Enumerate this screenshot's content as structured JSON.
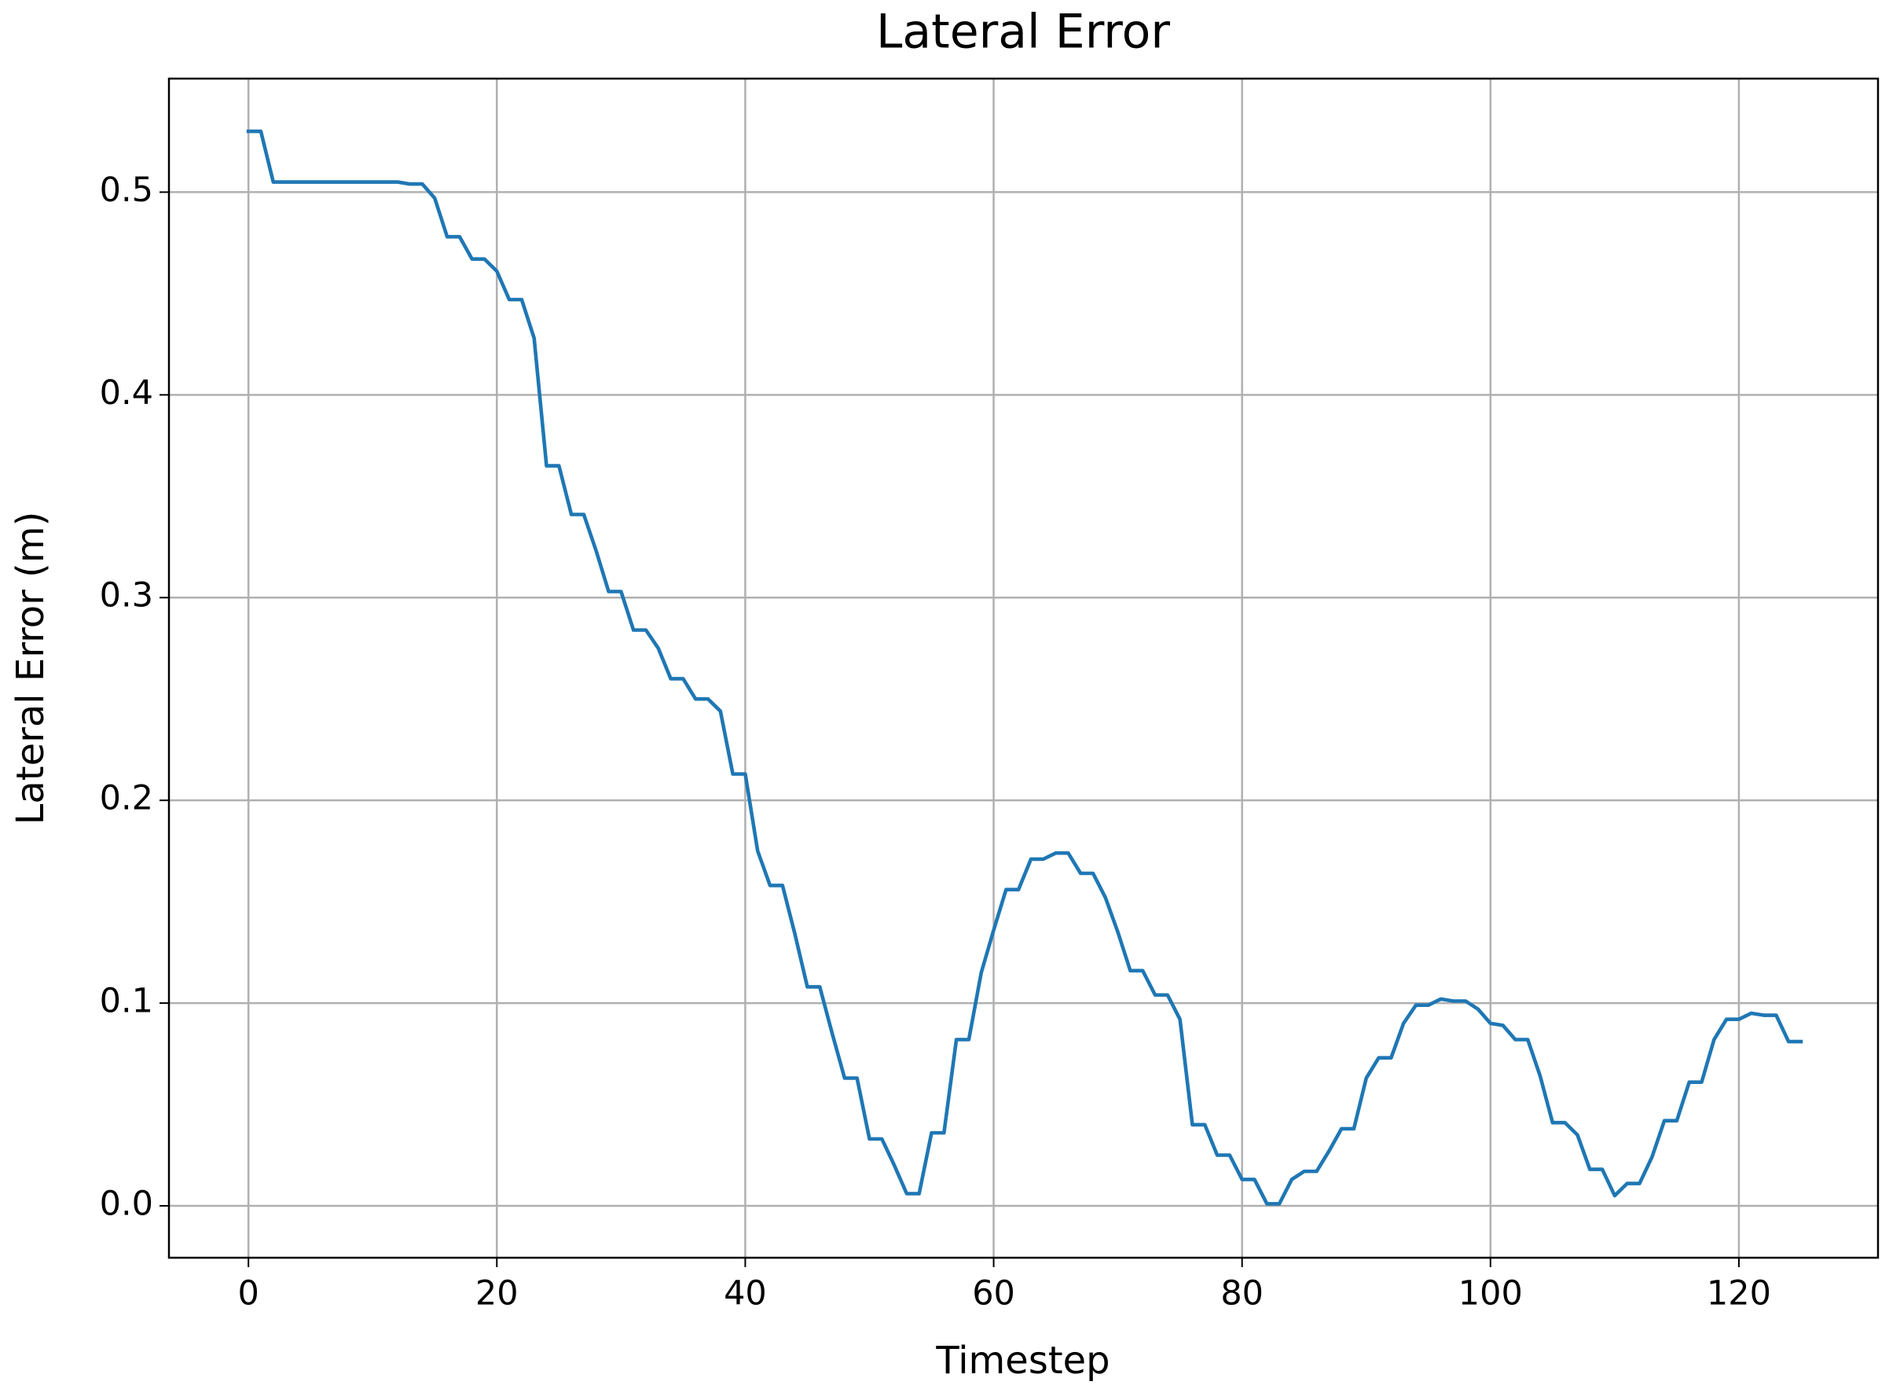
{
  "chart_data": {
    "type": "line",
    "title": "Lateral Error",
    "xlabel": "Timestep",
    "ylabel": "Lateral Error (m)",
    "color": "#1f77b4",
    "grid": true,
    "xlim": [
      -6.4,
      131.2
    ],
    "ylim": [
      -0.0256,
      0.556
    ],
    "xticks": [
      0,
      20,
      40,
      60,
      80,
      100,
      120
    ],
    "yticks": [
      {
        "value": 0,
        "label": "0.0"
      },
      0.1,
      0.2,
      0.3,
      0.4,
      0.5
    ],
    "x": [
      0,
      1,
      2,
      3,
      4,
      5,
      6,
      7,
      8,
      9,
      10,
      11,
      12,
      13,
      14,
      15,
      16,
      17,
      18,
      19,
      20,
      21,
      22,
      23,
      24,
      25,
      26,
      27,
      28,
      29,
      30,
      31,
      32,
      33,
      34,
      35,
      36,
      37,
      38,
      39,
      40,
      41,
      42,
      43,
      44,
      45,
      46,
      47,
      48,
      49,
      50,
      51,
      52,
      53,
      54,
      55,
      56,
      57,
      58,
      59,
      60,
      61,
      62,
      63,
      64,
      65,
      66,
      67,
      68,
      69,
      70,
      71,
      72,
      73,
      74,
      75,
      76,
      77,
      78,
      79,
      80,
      81,
      82,
      83,
      84,
      85,
      86,
      87,
      88,
      89,
      90,
      91,
      92,
      93,
      94,
      95,
      96,
      97,
      98,
      99,
      100,
      101,
      102,
      103,
      104,
      105,
      106,
      107,
      108,
      109,
      110,
      111,
      112,
      113,
      114,
      115,
      116,
      117,
      118,
      119,
      120,
      121,
      122,
      123,
      124,
      125
    ],
    "values": [
      0.53,
      0.53,
      0.505,
      0.505,
      0.505,
      0.505,
      0.505,
      0.505,
      0.505,
      0.505,
      0.505,
      0.505,
      0.505,
      0.504,
      0.504,
      0.497,
      0.478,
      0.478,
      0.467,
      0.467,
      0.461,
      0.447,
      0.447,
      0.428,
      0.365,
      0.365,
      0.341,
      0.341,
      0.323,
      0.303,
      0.303,
      0.284,
      0.284,
      0.275,
      0.26,
      0.26,
      0.25,
      0.25,
      0.244,
      0.213,
      0.213,
      0.175,
      0.158,
      0.158,
      0.134,
      0.108,
      0.108,
      0.085,
      0.063,
      0.063,
      0.033,
      0.033,
      0.02,
      0.006,
      0.006,
      0.036,
      0.036,
      0.082,
      0.082,
      0.115,
      0.136,
      0.156,
      0.156,
      0.171,
      0.171,
      0.174,
      0.174,
      0.164,
      0.164,
      0.152,
      0.135,
      0.116,
      0.116,
      0.104,
      0.104,
      0.092,
      0.04,
      0.04,
      0.025,
      0.025,
      0.013,
      0.013,
      0.001,
      0.001,
      0.013,
      0.017,
      0.017,
      0.027,
      0.038,
      0.038,
      0.063,
      0.073,
      0.073,
      0.09,
      0.099,
      0.099,
      0.102,
      0.101,
      0.101,
      0.097,
      0.09,
      0.089,
      0.082,
      0.082,
      0.064,
      0.041,
      0.041,
      0.035,
      0.018,
      0.018,
      0.005,
      0.011,
      0.011,
      0.024,
      0.042,
      0.042,
      0.061,
      0.061,
      0.082,
      0.092,
      0.092,
      0.095,
      0.094,
      0.094,
      0.081,
      0.081
    ]
  }
}
